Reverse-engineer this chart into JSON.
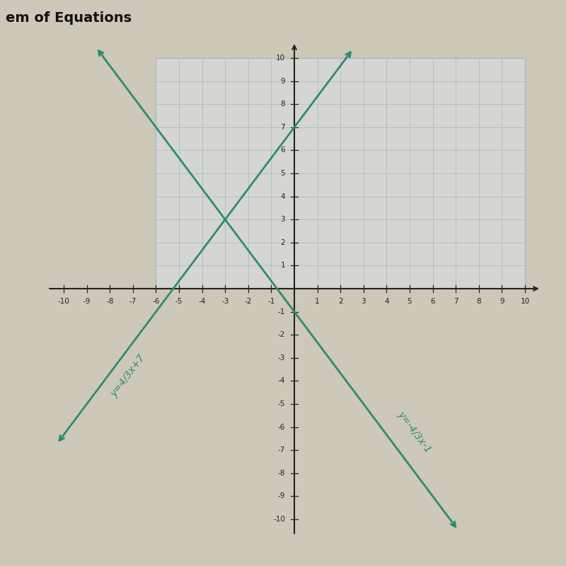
{
  "title": "em of Equations",
  "xlim": [
    -10,
    10
  ],
  "ylim": [
    -10,
    10
  ],
  "line1_slope": 1.3333333333,
  "line1_intercept": 7,
  "line1_label": "y=4/3x+7",
  "line2_slope": -1.3333333333,
  "line2_intercept": -1,
  "line2_label": "y=-4/3x-1",
  "line_color": "#2E8B6E",
  "bg_outer": "#cdc8b8",
  "bg_inner": "#e8e4d8",
  "grid_color": "#9ab0c8",
  "axis_color": "#222222",
  "rect_grid_color": "#b8c8d8",
  "label_fontsize": 10,
  "tick_fontsize": 7.5,
  "grid_alpha": 0.7,
  "title_color": "#111111",
  "title_fontsize": 14,
  "grid_xmin": -6,
  "grid_xmax": 10,
  "grid_ymin": 0,
  "grid_ymax": 10
}
